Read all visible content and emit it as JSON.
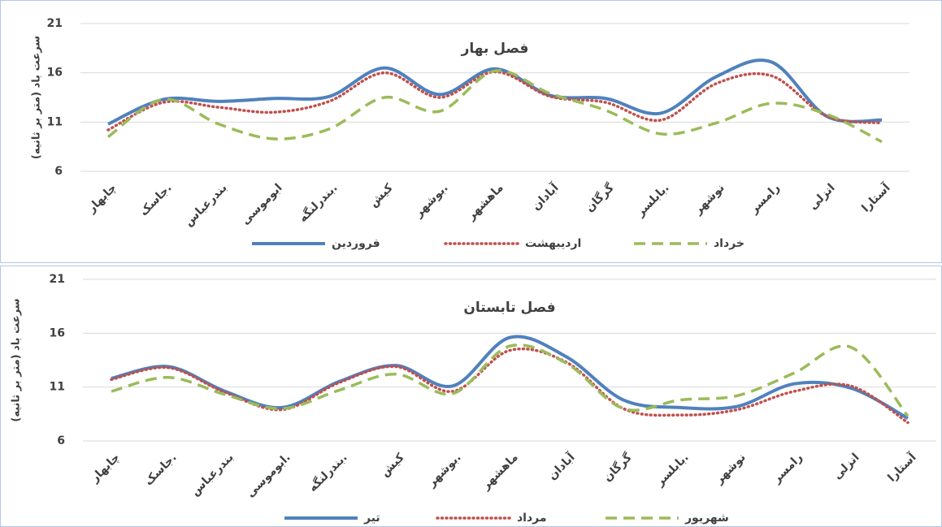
{
  "chart_data": [
    {
      "type": "line",
      "title": "فصل بهار",
      "y_label": "سرعت باد (متر بر ثانیه)",
      "categories": [
        "چابهار",
        "جاسک.",
        "بندرعباس",
        "ابوموسی",
        "بندرلنگه.",
        "کیش",
        "بوشهر.",
        "ماهشهر",
        "آبادان",
        "گرگان",
        "بابلسر.",
        "نوشهر",
        "رامسر",
        "انزلی",
        "آستارا"
      ],
      "series": [
        {
          "name": "فروردین",
          "color": "#4f81bd",
          "line_style": "solid",
          "values": [
            10.8,
            13.3,
            13.1,
            13.4,
            13.6,
            16.5,
            13.8,
            16.4,
            13.7,
            13.4,
            11.9,
            15.6,
            17.1,
            11.6,
            11.2
          ]
        },
        {
          "name": "اردیبهشت",
          "color": "#c0504d",
          "line_style": "dotted",
          "values": [
            10.2,
            13.0,
            12.5,
            12.0,
            13.1,
            16.0,
            13.5,
            16.1,
            13.6,
            13.0,
            11.2,
            14.9,
            15.7,
            11.6,
            10.9
          ]
        },
        {
          "name": "خرداد",
          "color": "#9bbb59",
          "line_style": "dashed",
          "values": [
            9.5,
            13.3,
            10.8,
            9.3,
            10.3,
            13.5,
            12.1,
            16.2,
            13.9,
            12.2,
            9.8,
            10.9,
            12.9,
            11.8,
            9.0
          ]
        }
      ],
      "ylim": [
        6,
        21
      ],
      "yticks": [
        6,
        11,
        16,
        21
      ],
      "grid": true
    },
    {
      "type": "line",
      "title": "فصل تابستان",
      "y_label": "سرعت باد (متر بر ثانیه)",
      "categories": [
        "چابهار",
        "جاسک.",
        "بندرعباس",
        "ابوموسی.",
        "بندرلنگه.",
        "کیش",
        "بوشهر.",
        "ماهشهر",
        "آبادان",
        "گرگان",
        "بابلسر.",
        "نوشهر",
        "رامسر",
        "انزلی",
        "آستارا"
      ],
      "series": [
        {
          "name": "تیر",
          "color": "#4f81bd",
          "line_style": "solid",
          "values": [
            11.8,
            12.9,
            10.6,
            9.1,
            11.5,
            13.0,
            11.1,
            15.6,
            13.8,
            9.8,
            9.1,
            9.2,
            11.3,
            10.9,
            8.1
          ]
        },
        {
          "name": "مرداد",
          "color": "#c0504d",
          "line_style": "dotted",
          "values": [
            11.7,
            12.8,
            10.5,
            8.9,
            11.4,
            12.9,
            10.6,
            14.4,
            13.3,
            9.0,
            8.4,
            8.9,
            10.6,
            11.1,
            7.7
          ]
        },
        {
          "name": "شهریور",
          "color": "#9bbb59",
          "line_style": "dashed",
          "values": [
            10.6,
            11.9,
            10.3,
            9.0,
            10.7,
            12.2,
            10.4,
            14.8,
            13.2,
            9.0,
            9.8,
            10.2,
            12.3,
            14.7,
            8.3
          ]
        }
      ],
      "ylim": [
        6,
        21
      ],
      "yticks": [
        6,
        11,
        16,
        21
      ],
      "grid": true
    }
  ]
}
